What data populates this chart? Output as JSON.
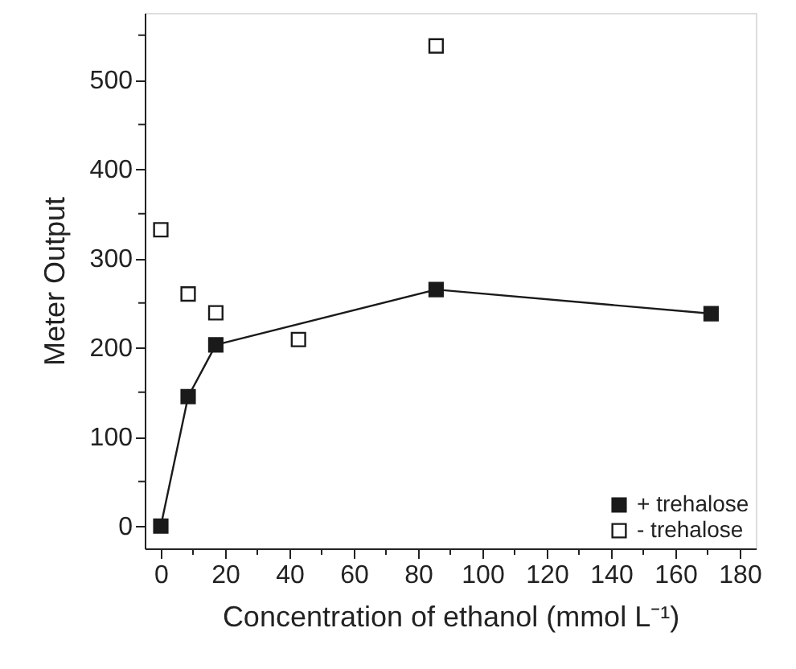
{
  "chart_data": {
    "type": "line",
    "xlabel": "Concentration of ethanol (mmol L⁻¹)",
    "ylabel": "Meter Output",
    "xlim": [
      -5,
      185
    ],
    "ylim": [
      -25,
      575
    ],
    "xticks": [
      0,
      {
        "value": 10,
        "label": null
      },
      20,
      {
        "value": 30,
        "label": null
      },
      40,
      {
        "value": 50,
        "label": null
      },
      60,
      {
        "value": 70,
        "label": null
      },
      80,
      {
        "value": 90,
        "label": null
      },
      100,
      {
        "value": 110,
        "label": null
      },
      120,
      {
        "value": 130,
        "label": null
      },
      140,
      {
        "value": 150,
        "label": null
      },
      160,
      {
        "value": 170,
        "label": null
      },
      180
    ],
    "yticks": [
      0,
      {
        "value": 50,
        "label": null
      },
      100,
      {
        "value": 150,
        "label": null
      },
      200,
      {
        "value": 250,
        "label": null
      },
      300,
      {
        "value": 350,
        "label": null
      },
      400,
      {
        "value": 450,
        "label": null
      },
      500,
      {
        "value": 550,
        "label": null
      }
    ],
    "grid": false,
    "legend": "bottom right",
    "marker": "square",
    "line_style": "solid",
    "series": [
      {
        "name": "+ trehalose",
        "color": "#1a1a1a",
        "x": [
          0,
          8.5,
          17.1,
          85.6,
          171.1
        ],
        "values": [
          0,
          145,
          203,
          265,
          238
        ]
      },
      {
        "name": "- trehalose",
        "type": "scatter",
        "color": "#1a1a1a",
        "x": [
          0,
          8.5,
          17.1,
          42.8,
          85.6
        ],
        "values": [
          332,
          260,
          239,
          209,
          538
        ]
      }
    ]
  }
}
